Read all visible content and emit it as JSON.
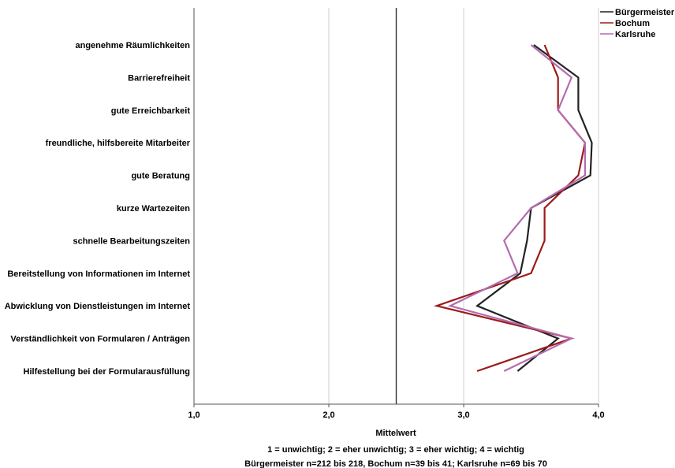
{
  "chart_data": {
    "type": "line",
    "orientation": "horizontal",
    "categories": [
      "angenehme Räumlichkeiten",
      "Barrierefreiheit",
      "gute Erreichbarkeit",
      "freundliche, hilfsbereite Mitarbeiter",
      "gute Beratung",
      "kurze Wartezeiten",
      "schnelle Bearbeitungszeiten",
      "Bereitstellung von Informationen im Internet",
      "Abwicklung von Dienstleistungen im Internet",
      "Verständlichkeit von Formularen / Anträgen",
      "Hilfestellung bei der Formularausfüllung"
    ],
    "series": [
      {
        "name": "Bürgermeister",
        "color": "#222222",
        "values": [
          3.52,
          3.85,
          3.85,
          3.95,
          3.94,
          3.5,
          3.47,
          3.42,
          3.1,
          3.7,
          3.4
        ]
      },
      {
        "name": "Bochum",
        "color": "#9b1b1b",
        "values": [
          3.6,
          3.7,
          3.7,
          3.9,
          3.85,
          3.6,
          3.6,
          3.5,
          2.8,
          3.8,
          3.1
        ]
      },
      {
        "name": "Karlsruhe",
        "color": "#b56cb0",
        "values": [
          3.5,
          3.8,
          3.7,
          3.9,
          3.9,
          3.5,
          3.3,
          3.4,
          2.9,
          3.8,
          3.3
        ]
      }
    ],
    "xlabel": "Mittelwert",
    "xlim": [
      1.0,
      4.0
    ],
    "xticks": [
      "1,0",
      "2,0",
      "3,0",
      "4,0"
    ],
    "reference_line": 2.5,
    "grid": "vertical",
    "legend": "top-right",
    "notes": [
      "1 = unwichtig; 2 = eher unwichtig; 3 = eher wichtig; 4 = wichtig",
      "Bürgermeister n=212 bis 218, Bochum n=39 bis 41; Karlsruhe n=69 bis 70"
    ]
  }
}
